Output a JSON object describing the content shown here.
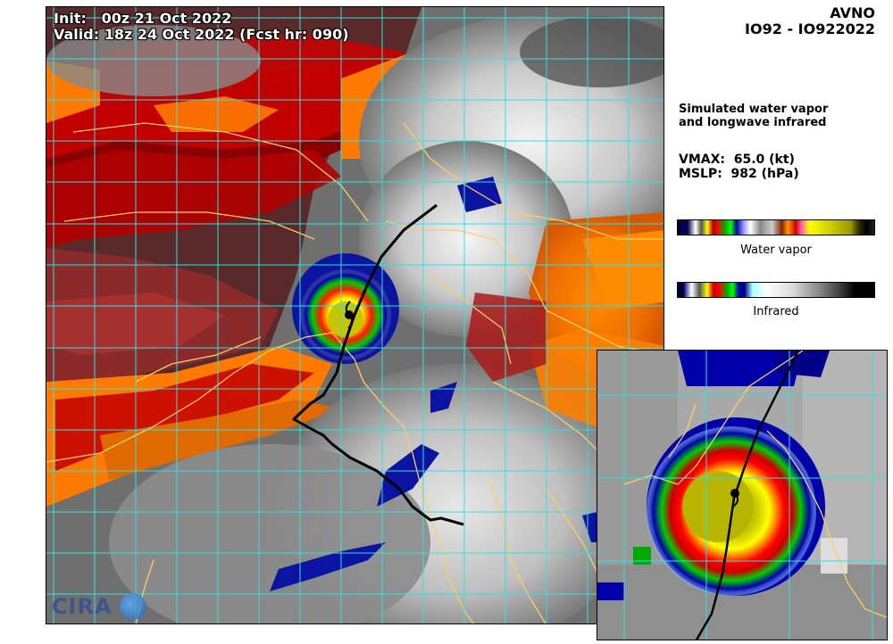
{
  "header": {
    "model": "AVNO",
    "storm_id": "IO92 - IO922022"
  },
  "map_overlay": {
    "init": "Init:   00z 21 Oct 2022",
    "valid": "Valid: 18z 24 Oct 2022 (Fcst hr: 090)"
  },
  "panel": {
    "description_line1": "Simulated water vapor",
    "description_line2": "and longwave infrared",
    "vmax": "VMAX:  65.0 (kt)",
    "mslp": "MSLP:  982 (hPa)"
  },
  "colorbars": {
    "water_vapor_label": "Water vapor",
    "infrared_label": "Infrared"
  },
  "logo": {
    "text": "CIRA"
  },
  "colors": {
    "grid": "#33e0e0",
    "coast": "#ffcc66",
    "track": "#000000"
  },
  "icons": {
    "storm_marker": "tropical-cyclone-icon"
  }
}
